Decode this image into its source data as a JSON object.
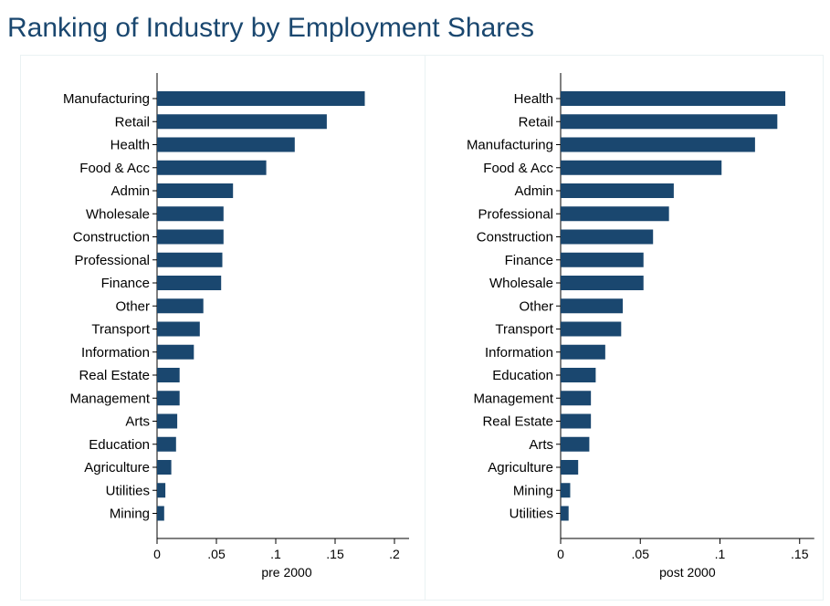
{
  "title": "Ranking of Industry by Employment Shares",
  "colors": {
    "bar": "#1a476f",
    "title": "#1a476f",
    "axis": "#000000"
  },
  "chart_data": [
    {
      "type": "bar",
      "orientation": "horizontal",
      "title": "",
      "xlabel": "pre 2000",
      "ylabel": "",
      "xlim": [
        0,
        0.2
      ],
      "ticks": [
        {
          "value": 0,
          "label": "0"
        },
        {
          "value": 0.05,
          "label": ".05"
        },
        {
          "value": 0.1,
          "label": ".1"
        },
        {
          "value": 0.15,
          "label": ".15"
        },
        {
          "value": 0.2,
          "label": ".2"
        }
      ],
      "categories": [
        "Manufacturing",
        "Retail",
        "Health",
        "Food & Acc",
        "Admin",
        "Wholesale",
        "Construction",
        "Professional",
        "Finance",
        "Other",
        "Transport",
        "Information",
        "Real Estate",
        "Management",
        "Arts",
        "Education",
        "Agriculture",
        "Utilities",
        "Mining"
      ],
      "values": [
        0.175,
        0.143,
        0.116,
        0.092,
        0.064,
        0.056,
        0.056,
        0.055,
        0.054,
        0.039,
        0.036,
        0.031,
        0.019,
        0.019,
        0.017,
        0.016,
        0.012,
        0.007,
        0.006
      ]
    },
    {
      "type": "bar",
      "orientation": "horizontal",
      "title": "",
      "xlabel": "post 2000",
      "ylabel": "",
      "xlim": [
        0,
        0.15
      ],
      "ticks": [
        {
          "value": 0,
          "label": "0"
        },
        {
          "value": 0.05,
          "label": ".05"
        },
        {
          "value": 0.1,
          "label": ".1"
        },
        {
          "value": 0.15,
          "label": ".15"
        }
      ],
      "categories": [
        "Health",
        "Retail",
        "Manufacturing",
        "Food & Acc",
        "Admin",
        "Professional",
        "Construction",
        "Finance",
        "Wholesale",
        "Other",
        "Transport",
        "Information",
        "Education",
        "Management",
        "Real Estate",
        "Arts",
        "Agriculture",
        "Mining",
        "Utilities"
      ],
      "values": [
        0.141,
        0.136,
        0.122,
        0.101,
        0.071,
        0.068,
        0.058,
        0.052,
        0.052,
        0.039,
        0.038,
        0.028,
        0.022,
        0.019,
        0.019,
        0.018,
        0.011,
        0.006,
        0.005
      ]
    }
  ]
}
